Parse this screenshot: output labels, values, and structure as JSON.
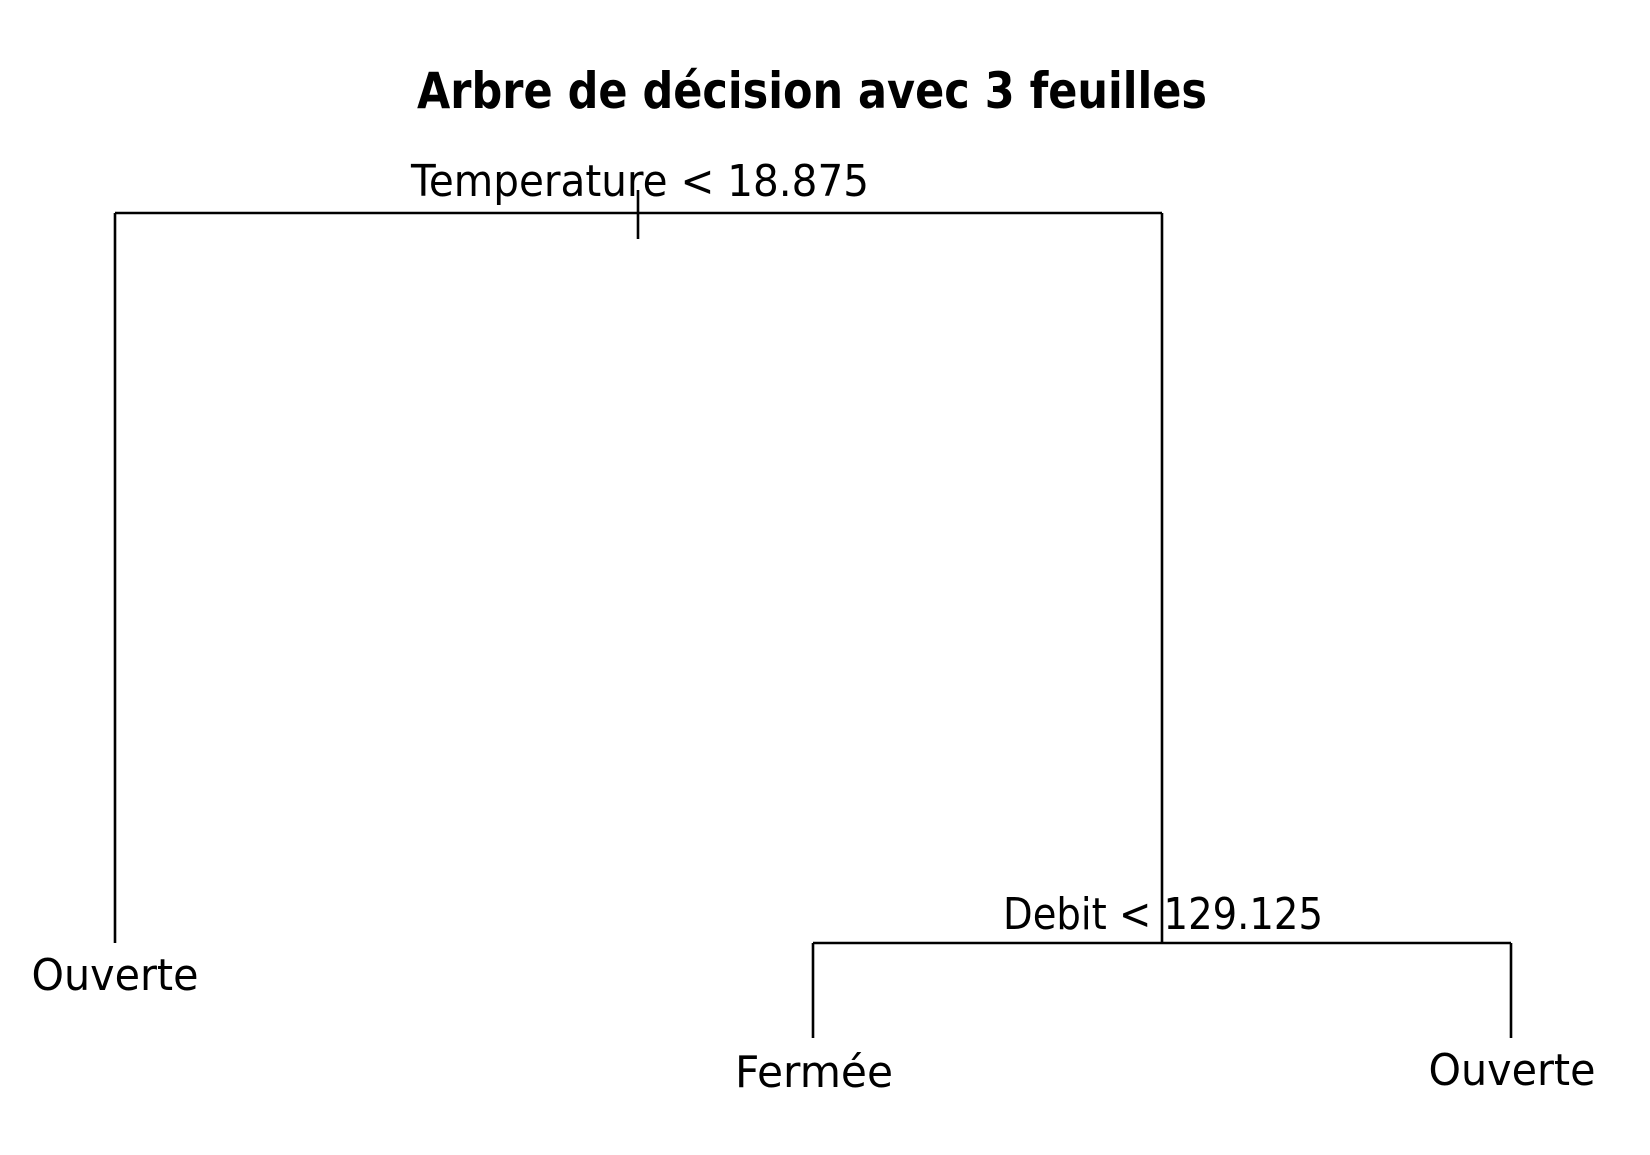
{
  "title": "Arbre de décision avec 3 feuilles",
  "tree": {
    "root_split": "Temperature < 18.875",
    "left_leaf": "Ouverte",
    "right_split": "Debit < 129.125",
    "right_left_leaf": "Fermée",
    "right_right_leaf": "Ouverte"
  },
  "colors": {
    "line": "#000000",
    "text": "#000000",
    "background": "#ffffff"
  }
}
